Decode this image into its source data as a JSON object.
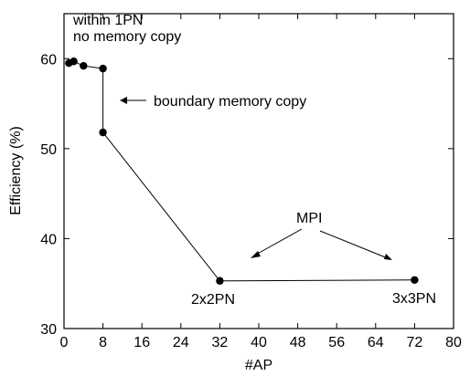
{
  "chart_data": {
    "type": "line",
    "xlabel": "#AP",
    "ylabel": "Efficiency (%)",
    "xlim": [
      0,
      80
    ],
    "ylim": [
      30,
      65
    ],
    "xticks": [
      0,
      8,
      16,
      24,
      32,
      40,
      48,
      56,
      64,
      72,
      80
    ],
    "yticks": [
      30,
      40,
      50,
      60
    ],
    "grid": false,
    "legend": "none",
    "series": [
      {
        "x": [
          1,
          2,
          4,
          8,
          8,
          32,
          72
        ],
        "y": [
          59.5,
          59.7,
          59.2,
          58.9,
          51.8,
          35.3,
          35.4
        ]
      }
    ],
    "annotations": {
      "within_1pn": "within 1PN",
      "no_memory_copy": "no memory copy",
      "boundary_memory_copy": "boundary memory copy",
      "mpi": "MPI",
      "pn_2x2": "2x2PN",
      "pn_3x3": "3x3PN"
    }
  }
}
